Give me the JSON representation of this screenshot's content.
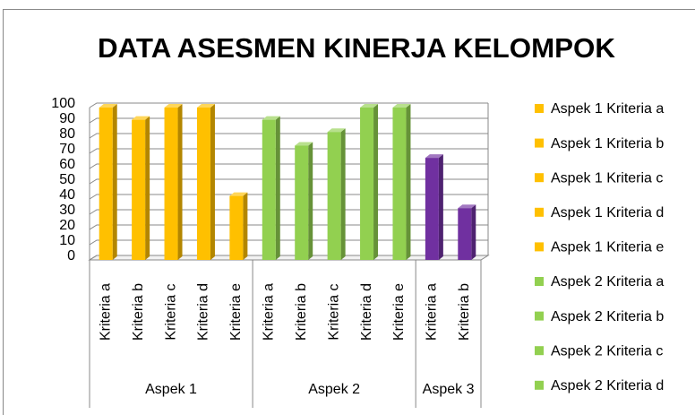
{
  "chart_data": {
    "type": "bar3d",
    "title": "DATA ASESMEN KINERJA KELOMPOK",
    "ylim": [
      0,
      100
    ],
    "yticks": [
      0,
      10,
      20,
      30,
      40,
      50,
      60,
      70,
      80,
      90,
      100
    ],
    "grid": true,
    "groups": [
      {
        "name": "Aspek 1",
        "color": "#ffc000",
        "categories": [
          "Kriteria a",
          "Kriteria b",
          "Kriteria c",
          "Kriteria d",
          "Kriteria e"
        ],
        "values": [
          100,
          92,
          100,
          100,
          42
        ]
      },
      {
        "name": "Aspek 2",
        "color": "#92d050",
        "categories": [
          "Kriteria a",
          "Kriteria b",
          "Kriteria c",
          "Kriteria d",
          "Kriteria e"
        ],
        "values": [
          92,
          75,
          84,
          100,
          100
        ]
      },
      {
        "name": "Aspek 3",
        "color": "#7030a0",
        "categories": [
          "Kriteria a",
          "Kriteria b"
        ],
        "values": [
          67,
          34
        ]
      }
    ],
    "legend": [
      {
        "label": "Aspek 1 Kriteria a",
        "color": "#ffc000"
      },
      {
        "label": "Aspek 1 Kriteria b",
        "color": "#ffc000"
      },
      {
        "label": "Aspek 1 Kriteria c",
        "color": "#ffc000"
      },
      {
        "label": "Aspek 1 Kriteria d",
        "color": "#ffc000"
      },
      {
        "label": "Aspek 1 Kriteria e",
        "color": "#ffc000"
      },
      {
        "label": "Aspek 2 Kriteria a",
        "color": "#92d050"
      },
      {
        "label": "Aspek 2 Kriteria b",
        "color": "#92d050"
      },
      {
        "label": "Aspek 2 Kriteria c",
        "color": "#92d050"
      },
      {
        "label": "Aspek 2 Kriteria d",
        "color": "#92d050"
      }
    ]
  }
}
